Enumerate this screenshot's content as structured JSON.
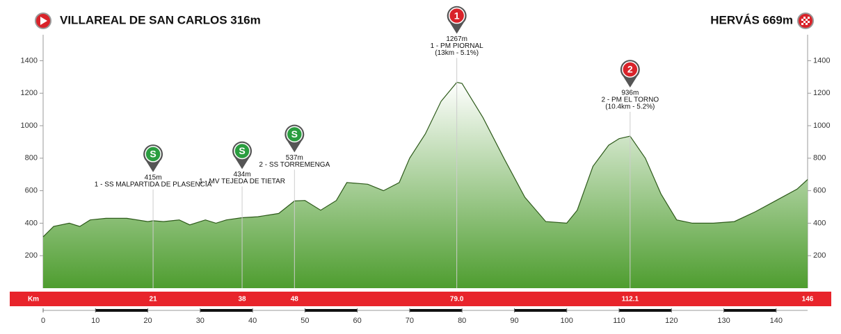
{
  "chart_data": {
    "type": "area",
    "start_label": "VILLAREAL DE SAN CARLOS 316m",
    "finish_label": "HERVÁS 669m",
    "km_bar_label": "Km",
    "x": [
      0,
      2,
      5,
      7,
      9,
      12,
      16,
      20,
      21,
      23,
      26,
      28,
      31,
      33,
      35,
      38,
      41,
      45,
      48,
      50,
      53,
      56,
      58,
      62,
      65,
      68,
      70,
      73,
      76,
      79,
      80,
      84,
      88,
      92,
      96,
      100,
      102,
      105,
      108,
      110,
      112.1,
      115,
      118,
      121,
      124,
      128,
      132,
      136,
      140,
      144,
      146
    ],
    "values": [
      316,
      380,
      400,
      380,
      420,
      430,
      430,
      410,
      415,
      410,
      420,
      390,
      420,
      400,
      420,
      434,
      440,
      460,
      537,
      540,
      480,
      540,
      650,
      640,
      600,
      650,
      800,
      950,
      1150,
      1267,
      1260,
      1050,
      800,
      560,
      410,
      400,
      480,
      750,
      880,
      920,
      936,
      800,
      580,
      420,
      400,
      400,
      410,
      470,
      540,
      610,
      669
    ],
    "color": "#2d5a1a",
    "xlim": [
      0,
      146
    ],
    "xticks": [
      0,
      10,
      20,
      30,
      40,
      50,
      60,
      70,
      80,
      90,
      100,
      110,
      120,
      130,
      140
    ],
    "ylim": [
      0,
      1560
    ],
    "yticks": [
      200,
      400,
      600,
      800,
      1000,
      1200,
      1400
    ],
    "annotations": [
      {
        "km": 21,
        "elevation": 415,
        "elevation_label": "415m",
        "name": "1 - SS MALPARTIDA DE PLASENCIA",
        "icon": "S",
        "color": "#2a9d3f"
      },
      {
        "km": 38,
        "elevation": 434,
        "elevation_label": "434m",
        "name": "1 - MV TEJEDA DE TIETAR",
        "icon": "S",
        "color": "#2a9d3f"
      },
      {
        "km": 48,
        "elevation": 537,
        "elevation_label": "537m",
        "name": "2 - SS TORREMENGA",
        "icon": "S",
        "color": "#2a9d3f"
      },
      {
        "km": {
          "value": 79,
          "label": "79.0"
        },
        "elevation": 1267,
        "elevation_label": "1267m",
        "name": "1 - PM PIORNAL",
        "detail": "(13km - 5.1%)",
        "icon": "1",
        "color": "#d9232a"
      },
      {
        "km": {
          "value": 112.1,
          "label": "112.1"
        },
        "elevation": 936,
        "elevation_label": "936m",
        "name": "2 - PM EL TORNO",
        "detail": "(10.4km - 5.2%)",
        "icon": "2",
        "color": "#d9232a"
      },
      {
        "km": 146
      }
    ]
  }
}
